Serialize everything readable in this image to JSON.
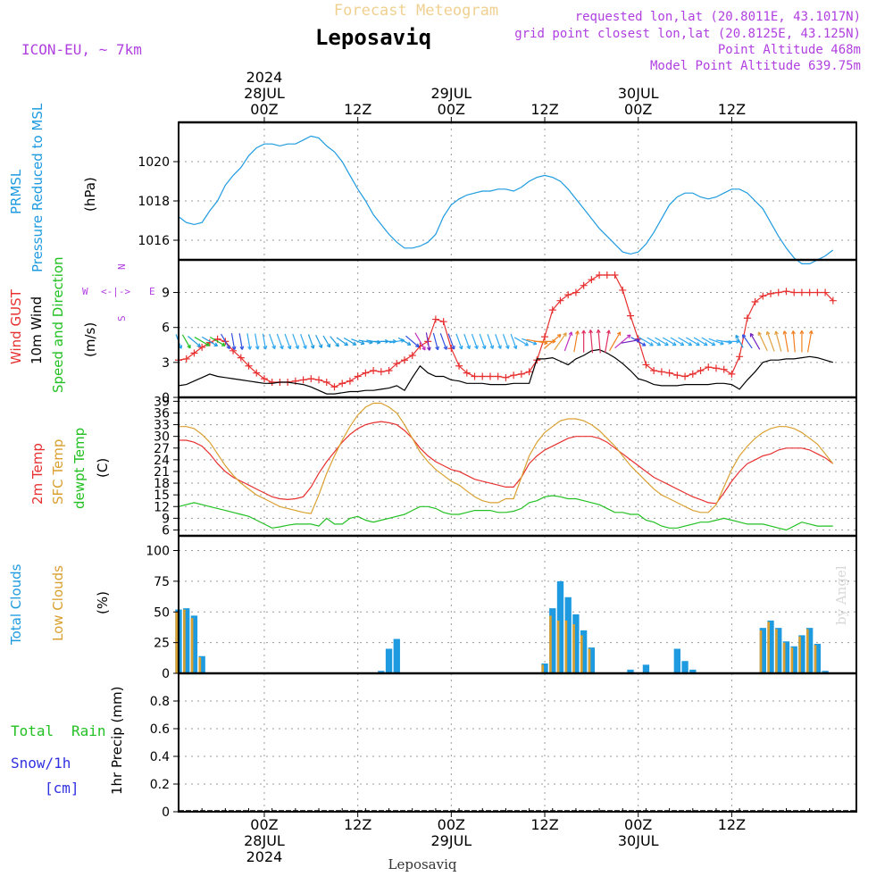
{
  "header": {
    "title": "Leposaviq",
    "subtitle": "Forecast Meteogram",
    "model": "ICON-EU, ~ 7km",
    "requested": "requested lon,lat (20.8011E, 43.1017N)",
    "gridpoint": "grid point closest lon,lat (20.8125E, 43.125N)",
    "point_altitude": "Point Altitude 468m",
    "model_altitude": "Model Point Altitude 639.75m",
    "watermark": "by Angel",
    "footer": "Leposaviq"
  },
  "colors": {
    "pressure": "#1e9be0",
    "gust": "#e83030",
    "wind": "#000000",
    "t2m": "#e83030",
    "tsfc": "#d9a030",
    "dewpt": "#22c022",
    "total_cloud": "#1e9be0",
    "low_cloud": "#d9a030",
    "rain": "#22c022",
    "snow": "#3030e0",
    "label_purple": "#b040e0",
    "subtitle": "#f0d090"
  },
  "time_axis": {
    "top_labels": [
      {
        "h": 0,
        "lines": [
          "2024",
          "28JUL",
          "00Z"
        ]
      },
      {
        "h": 12,
        "lines": [
          "12Z"
        ]
      },
      {
        "h": 24,
        "lines": [
          "29JUL",
          "00Z"
        ]
      },
      {
        "h": 36,
        "lines": [
          "12Z"
        ]
      },
      {
        "h": 48,
        "lines": [
          "30JUL",
          "00Z"
        ]
      },
      {
        "h": 60,
        "lines": [
          "12Z"
        ]
      }
    ],
    "bottom_labels": [
      {
        "h": 0,
        "lines": [
          "00Z",
          "28JUL",
          "2024"
        ]
      },
      {
        "h": 12,
        "lines": [
          "12Z"
        ]
      },
      {
        "h": 24,
        "lines": [
          "00Z",
          "29JUL"
        ]
      },
      {
        "h": 36,
        "lines": [
          "12Z"
        ]
      },
      {
        "h": 48,
        "lines": [
          "00Z",
          "30JUL"
        ]
      },
      {
        "h": 60,
        "lines": [
          "12Z"
        ]
      }
    ]
  },
  "panel_labels": {
    "pressure": {
      "l1": "PRMSL",
      "l2": "Pressure Reduced to MSL",
      "unit": "(hPa)"
    },
    "wind": {
      "l1": "Wind GUST",
      "l2": "10m Wind",
      "l3": "Speed and Direction",
      "unit": "(m/s)",
      "compass_w": "W",
      "compass_e": "E",
      "compass_arrows": "<-|->",
      "compass_n": "N",
      "compass_s": "S"
    },
    "temp": {
      "l1": "2m Temp",
      "l2": "SFC Temp",
      "l3": "dewpt Temp",
      "unit": "(C)"
    },
    "cloud": {
      "l1": "Total Clouds",
      "l2": "Low Clouds",
      "unit": "(%)"
    },
    "precip": {
      "l1": "Total",
      "l1b": "Rain",
      "l2": "Snow/1h",
      "l3": "[cm]",
      "unit": "1hr Precip (mm)"
    }
  },
  "chart_data": [
    {
      "type": "line",
      "name": "pressure",
      "ylim": [
        1015,
        1022
      ],
      "yticks": [
        1016,
        1018,
        1020
      ],
      "x_hours_start": -11,
      "step_hours": 1,
      "series": [
        {
          "name": "PRMSL",
          "values": [
            1017.2,
            1016.9,
            1016.8,
            1016.9,
            1017.5,
            1018.0,
            1018.8,
            1019.3,
            1019.7,
            1020.3,
            1020.7,
            1020.9,
            1020.9,
            1020.8,
            1020.9,
            1020.9,
            1021.1,
            1021.3,
            1021.2,
            1020.8,
            1020.5,
            1020.0,
            1019.3,
            1018.6,
            1018.0,
            1017.3,
            1016.8,
            1016.3,
            1015.9,
            1015.6,
            1015.6,
            1015.7,
            1015.9,
            1016.3,
            1017.2,
            1017.8,
            1018.1,
            1018.3,
            1018.4,
            1018.5,
            1018.5,
            1018.6,
            1018.6,
            1018.5,
            1018.7,
            1019.0,
            1019.2,
            1019.3,
            1019.2,
            1019.0,
            1018.6,
            1018.1,
            1017.6,
            1017.1,
            1016.6,
            1016.2,
            1015.8,
            1015.4,
            1015.3,
            1015.4,
            1015.8,
            1016.4,
            1017.1,
            1017.8,
            1018.2,
            1018.4,
            1018.4,
            1018.2,
            1018.1,
            1018.2,
            1018.4,
            1018.6,
            1018.6,
            1018.4,
            1018.0,
            1017.6,
            1016.9,
            1016.2,
            1015.6,
            1015.1,
            1014.8,
            1014.8,
            1015.0,
            1015.2,
            1015.5
          ]
        }
      ]
    },
    {
      "type": "line",
      "name": "wind",
      "ylim": [
        0,
        11.8
      ],
      "yticks": [
        0,
        3,
        6,
        9
      ],
      "x_hours_start": -11,
      "step_hours": 1,
      "series": [
        {
          "name": "Wind GUST",
          "values": [
            3.2,
            3.3,
            3.8,
            4.3,
            4.7,
            5.0,
            4.8,
            4.0,
            3.4,
            2.7,
            2.1,
            1.6,
            1.3,
            1.3,
            1.3,
            1.4,
            1.5,
            1.6,
            1.5,
            1.3,
            0.9,
            1.2,
            1.4,
            1.8,
            2.1,
            2.3,
            2.2,
            2.3,
            2.9,
            3.2,
            3.6,
            4.4,
            4.8,
            6.7,
            6.5,
            4.2,
            2.7,
            2.1,
            1.8,
            1.8,
            1.8,
            1.8,
            1.7,
            1.9,
            2.0,
            2.2,
            3.2,
            5.2,
            7.5,
            8.3,
            8.8,
            9.0,
            9.6,
            10.1,
            10.5,
            10.5,
            10.5,
            9.2,
            7.0,
            5.0,
            2.8,
            2.3,
            2.2,
            2.1,
            1.9,
            1.8,
            2.0,
            2.3,
            2.6,
            2.5,
            2.4,
            2.0,
            3.5,
            6.8,
            8.2,
            8.7,
            8.9,
            9.0,
            9.1,
            9.0,
            9.0,
            9.0,
            9.0,
            9.0,
            8.3
          ]
        },
        {
          "name": "10m Wind",
          "values": [
            1.0,
            1.1,
            1.4,
            1.7,
            2.0,
            1.8,
            1.7,
            1.6,
            1.5,
            1.4,
            1.3,
            1.2,
            1.2,
            1.3,
            1.3,
            1.2,
            1.1,
            0.9,
            0.6,
            0.3,
            0.3,
            0.4,
            0.5,
            0.5,
            0.6,
            0.6,
            0.7,
            0.8,
            1.0,
            0.6,
            1.7,
            2.7,
            2.1,
            1.8,
            1.8,
            1.5,
            1.4,
            1.2,
            1.2,
            1.2,
            1.1,
            1.1,
            1.1,
            1.2,
            1.2,
            1.2,
            3.3,
            3.3,
            3.4,
            3.1,
            2.8,
            3.3,
            3.6,
            4.0,
            4.1,
            3.8,
            3.4,
            2.9,
            2.3,
            1.6,
            1.4,
            1.1,
            1.0,
            1.0,
            1.0,
            1.1,
            1.1,
            1.1,
            1.1,
            1.2,
            1.2,
            1.1,
            0.7,
            1.5,
            2.2,
            3.0,
            3.2,
            3.2,
            3.3,
            3.3,
            3.4,
            3.5,
            3.4,
            3.2,
            3.0
          ]
        }
      ]
    },
    {
      "type": "line",
      "name": "temperature",
      "ylim": [
        4.5,
        40
      ],
      "yticks": [
        6,
        9,
        12,
        15,
        18,
        21,
        24,
        27,
        30,
        33,
        36,
        39
      ],
      "x_hours_start": -11,
      "step_hours": 1,
      "series": [
        {
          "name": "2m Temp",
          "values": [
            29.0,
            29.0,
            28.5,
            27.5,
            25.5,
            23.0,
            21.0,
            19.5,
            18.5,
            17.5,
            16.5,
            15.5,
            14.5,
            14.0,
            13.8,
            14.0,
            14.5,
            17.0,
            20.5,
            23.5,
            26.0,
            28.5,
            30.5,
            32.0,
            33.0,
            33.5,
            33.8,
            33.5,
            33.0,
            31.5,
            29.5,
            27.0,
            25.0,
            23.5,
            22.5,
            21.5,
            21.0,
            20.0,
            19.0,
            18.5,
            18.0,
            17.5,
            17.0,
            17.0,
            19.5,
            23.0,
            25.0,
            26.5,
            27.5,
            28.5,
            29.5,
            30.0,
            30.0,
            30.0,
            29.5,
            28.5,
            27.0,
            25.5,
            24.0,
            22.5,
            21.0,
            19.5,
            18.5,
            17.5,
            16.5,
            15.5,
            14.5,
            13.8,
            13.0,
            12.8,
            15.5,
            18.5,
            21.0,
            23.0,
            24.0,
            25.0,
            25.5,
            26.5,
            27.0,
            27.0,
            27.0,
            26.5,
            25.5,
            24.5,
            23.0
          ]
        },
        {
          "name": "SFC Temp",
          "values": [
            32.5,
            32.5,
            32.0,
            30.5,
            28.5,
            25.5,
            22.5,
            20.0,
            18.0,
            16.5,
            15.0,
            14.0,
            13.0,
            12.0,
            11.5,
            11.0,
            10.5,
            10.2,
            15.0,
            20.5,
            25.0,
            29.0,
            32.5,
            35.5,
            37.5,
            38.5,
            38.5,
            37.5,
            36.0,
            33.0,
            29.5,
            26.0,
            23.5,
            21.5,
            20.0,
            18.5,
            17.5,
            16.0,
            14.5,
            13.5,
            13.0,
            13.0,
            14.0,
            14.0,
            19.5,
            25.0,
            28.5,
            31.0,
            32.5,
            34.0,
            34.5,
            34.5,
            34.0,
            33.0,
            31.5,
            29.5,
            27.5,
            25.0,
            22.5,
            20.5,
            18.5,
            16.5,
            15.0,
            14.0,
            13.0,
            12.0,
            11.0,
            10.5,
            10.5,
            12.5,
            17.0,
            21.5,
            25.0,
            27.5,
            29.5,
            31.0,
            32.0,
            32.5,
            32.5,
            32.0,
            31.0,
            29.5,
            28.0,
            25.5,
            23.0
          ]
        },
        {
          "name": "dewpt Temp",
          "values": [
            12.0,
            12.5,
            13.0,
            12.5,
            12.0,
            11.5,
            11.0,
            10.5,
            10.0,
            9.5,
            8.5,
            7.5,
            6.5,
            6.8,
            7.2,
            7.5,
            7.5,
            7.5,
            7.0,
            9.0,
            7.5,
            7.5,
            9.0,
            9.5,
            8.5,
            8.0,
            8.5,
            9.0,
            9.5,
            10.0,
            11.0,
            12.0,
            12.0,
            11.5,
            10.5,
            10.0,
            10.0,
            10.5,
            11.0,
            11.0,
            11.0,
            10.5,
            10.5,
            10.8,
            11.5,
            13.0,
            13.5,
            14.5,
            14.8,
            14.5,
            14.0,
            14.0,
            13.5,
            13.0,
            12.5,
            11.5,
            10.5,
            10.5,
            10.0,
            10.0,
            8.5,
            8.0,
            7.0,
            6.5,
            6.5,
            7.0,
            7.5,
            8.0,
            8.0,
            8.5,
            9.0,
            8.5,
            8.0,
            7.5,
            7.5,
            7.5,
            7.0,
            6.5,
            6.0,
            7.0,
            8.0,
            7.5,
            7.0,
            7.0,
            7.0
          ]
        }
      ]
    },
    {
      "type": "bar",
      "name": "clouds",
      "ylim": [
        0,
        112
      ],
      "yticks": [
        0,
        25,
        50,
        75,
        100
      ],
      "x_hours_start": -11,
      "step_hours": 1,
      "series": [
        {
          "name": "Total Clouds",
          "values": [
            52,
            53,
            47,
            14,
            0,
            0,
            0,
            0,
            0,
            0,
            0,
            0,
            0,
            0,
            0,
            0,
            0,
            0,
            0,
            0,
            0,
            0,
            0,
            0,
            0,
            0,
            2,
            20,
            28,
            0,
            0,
            0,
            0,
            0,
            0,
            0,
            0,
            0,
            0,
            0,
            0,
            0,
            0,
            0,
            0,
            0,
            0,
            8,
            53,
            75,
            62,
            48,
            35,
            21,
            0,
            0,
            0,
            0,
            3,
            0,
            7,
            0,
            0,
            0,
            20,
            10,
            3,
            0,
            0,
            0,
            0,
            0,
            0,
            0,
            0,
            37,
            43,
            37,
            26,
            22,
            31,
            37,
            24,
            2,
            0
          ]
        },
        {
          "name": "Low Clouds",
          "values": [
            50,
            52,
            45,
            13,
            0,
            0,
            0,
            0,
            0,
            0,
            0,
            0,
            0,
            0,
            0,
            0,
            0,
            0,
            0,
            0,
            0,
            0,
            0,
            0,
            0,
            0,
            0,
            0,
            0,
            0,
            0,
            0,
            0,
            0,
            0,
            0,
            0,
            0,
            0,
            0,
            0,
            0,
            0,
            0,
            0,
            0,
            0,
            7,
            47,
            43,
            43,
            40,
            31,
            20,
            0,
            0,
            0,
            0,
            0,
            0,
            0,
            0,
            0,
            0,
            0,
            0,
            0,
            0,
            0,
            0,
            0,
            0,
            0,
            0,
            0,
            35,
            42,
            36,
            25,
            21,
            30,
            36,
            23,
            1,
            0
          ]
        }
      ]
    },
    {
      "type": "bar",
      "name": "precip",
      "ylim": [
        0,
        1.0
      ],
      "yticks": [
        "0",
        "0.2",
        "0.4",
        "0.6",
        "0.8"
      ],
      "x_hours_start": -11,
      "step_hours": 1,
      "series": [
        {
          "name": "1hr Precip",
          "values": [
            0,
            0,
            0,
            0,
            0,
            0,
            0,
            0,
            0,
            0,
            0,
            0,
            0,
            0,
            0,
            0,
            0,
            0,
            0,
            0,
            0,
            0,
            0,
            0,
            0,
            0,
            0,
            0,
            0,
            0,
            0,
            0,
            0,
            0,
            0,
            0,
            0,
            0,
            0,
            0,
            0,
            0,
            0,
            0,
            0,
            0,
            0,
            0,
            0,
            0,
            0,
            0,
            0,
            0,
            0,
            0,
            0,
            0,
            0,
            0,
            0,
            0,
            0,
            0,
            0,
            0,
            0,
            0,
            0,
            0,
            0,
            0,
            0,
            0,
            0,
            0,
            0,
            0,
            0,
            0,
            0,
            0,
            0,
            0,
            0
          ]
        }
      ]
    }
  ],
  "wind_dirs_from_deg": [
    340,
    330,
    310,
    300,
    300,
    300,
    330,
    350,
    350,
    350,
    350,
    350,
    340,
    340,
    340,
    340,
    340,
    340,
    335,
    330,
    320,
    305,
    300,
    290,
    280,
    280,
    270,
    270,
    260,
    300,
    310,
    330,
    350,
    345,
    340,
    340,
    340,
    340,
    340,
    340,
    340,
    340,
    340,
    340,
    300,
    290,
    280,
    270,
    230,
    215,
    200,
    190,
    180,
    175,
    175,
    190,
    210,
    230,
    260,
    300,
    300,
    300,
    300,
    300,
    300,
    300,
    300,
    300,
    300,
    290,
    280,
    270,
    150,
    145,
    150,
    155,
    160,
    165,
    170,
    175,
    180,
    190,
    200,
    210,
    220
  ]
}
